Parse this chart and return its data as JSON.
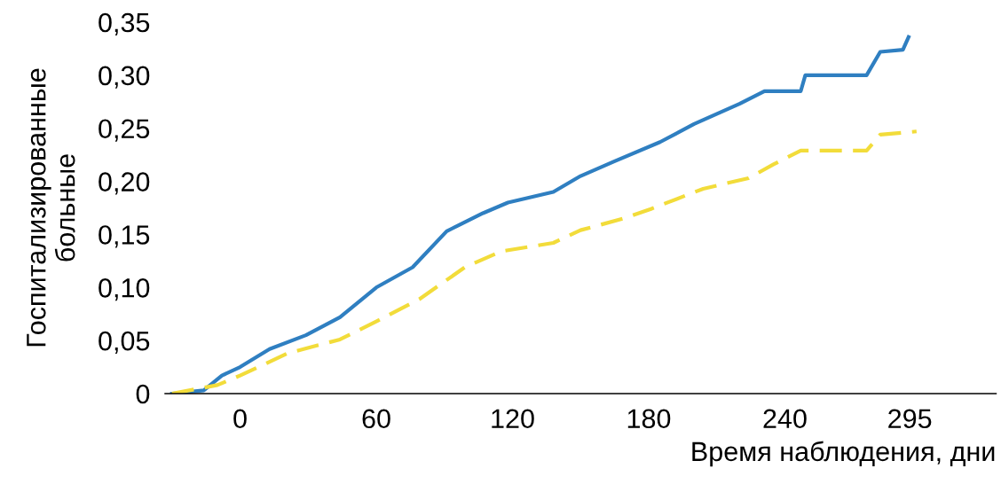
{
  "chart_data": {
    "type": "line",
    "xlabel": "Время наблюдения, дни",
    "ylabel": "Госпитализированные\nбольные",
    "xlim": [
      -33,
      333
    ],
    "ylim": [
      0,
      0.35
    ],
    "xticks": [
      0,
      60,
      120,
      180,
      240,
      295
    ],
    "yticks": [
      0,
      {
        "value": 0.05,
        "label": "0,05"
      },
      {
        "value": 0.1,
        "label": "0,10"
      },
      {
        "value": 0.15,
        "label": "0,15"
      },
      {
        "value": 0.2,
        "label": "0,20"
      },
      {
        "value": 0.25,
        "label": "0,25"
      },
      {
        "value": 0.3,
        "label": "0,30"
      },
      {
        "value": 0.35,
        "label": "0,35"
      }
    ],
    "grid": false,
    "legend": false,
    "marker": "none",
    "series": [
      {
        "color": "#2f7fc1",
        "line_style": "solid",
        "x": [
          -30,
          -16,
          -8,
          0,
          13,
          29,
          44,
          60,
          76,
          91,
          107,
          118,
          138,
          150,
          165,
          185,
          200,
          220,
          231,
          247,
          249,
          276,
          282,
          292,
          294.5
        ],
        "values": [
          0,
          0.003,
          0.017,
          0.025,
          0.042,
          0.055,
          0.072,
          0.1,
          0.119,
          0.153,
          0.17,
          0.18,
          0.19,
          0.205,
          0.219,
          0.237,
          0.254,
          0.273,
          0.285,
          0.285,
          0.3,
          0.3,
          0.322,
          0.324,
          0.336
        ]
      },
      {
        "color": "#f2dc3a",
        "line_style": "dashed",
        "x": [
          -30,
          -10,
          0,
          21,
          44,
          60,
          79,
          99,
          115,
          138,
          150,
          169,
          181,
          204,
          224,
          235,
          247,
          276,
          282,
          298
        ],
        "values": [
          0,
          0.008,
          0.017,
          0.038,
          0.051,
          0.068,
          0.089,
          0.119,
          0.134,
          0.142,
          0.154,
          0.165,
          0.174,
          0.193,
          0.203,
          0.216,
          0.229,
          0.229,
          0.244,
          0.247
        ]
      }
    ]
  }
}
